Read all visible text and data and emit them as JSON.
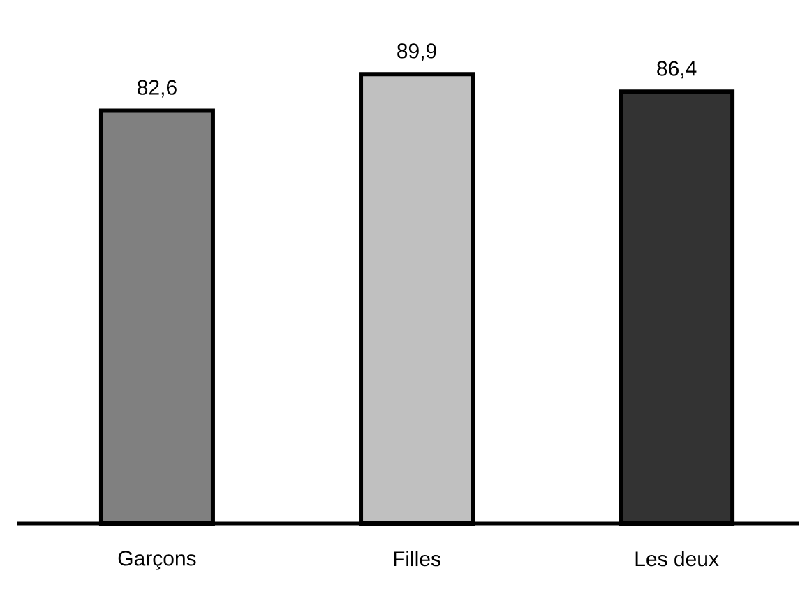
{
  "chart_data": {
    "type": "bar",
    "categories": [
      "Garçons",
      "Filles",
      "Les deux"
    ],
    "values": [
      82.6,
      89.9,
      86.4
    ],
    "colors": [
      "#808080",
      "#c0c0c0",
      "#333333"
    ],
    "value_labels": [
      "82,6",
      "89,9",
      "86,4"
    ]
  }
}
